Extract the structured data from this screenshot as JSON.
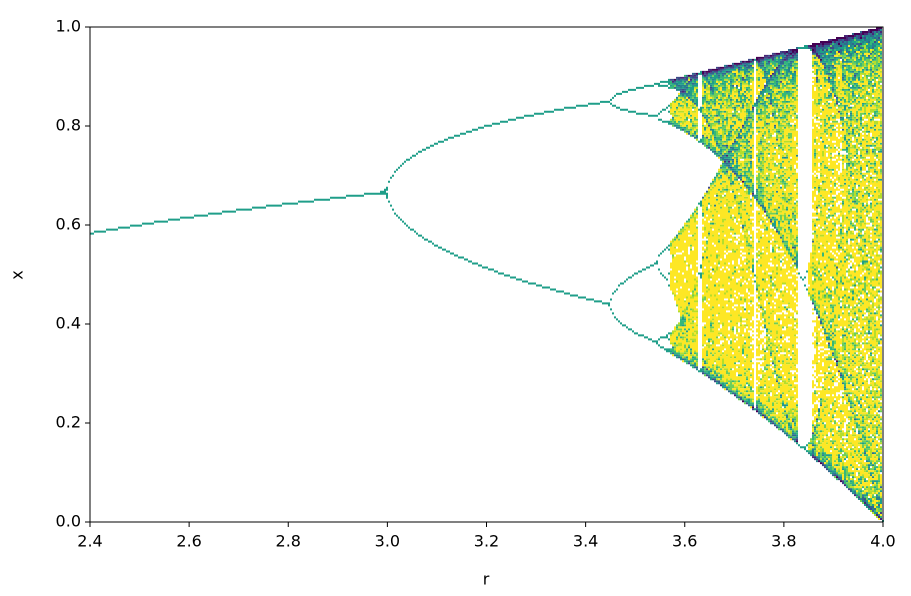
{
  "chart_data": {
    "type": "bifurcation",
    "xlabel": "r",
    "ylabel": "x",
    "colormap": "viridis",
    "xlim": [
      2.4,
      4.0
    ],
    "xticks": [
      2.4,
      2.6,
      2.8,
      {
        "value": 3.0,
        "label": "3.0"
      },
      3.2,
      3.4,
      3.6,
      3.8,
      {
        "value": 4.0,
        "label": "4.0"
      }
    ],
    "ylim": [
      0,
      1
    ],
    "yticks": [
      {
        "value": 0,
        "label": "0.0"
      },
      0.2,
      0.4,
      0.6,
      0.8,
      {
        "value": 1,
        "label": "1.0"
      }
    ]
  }
}
